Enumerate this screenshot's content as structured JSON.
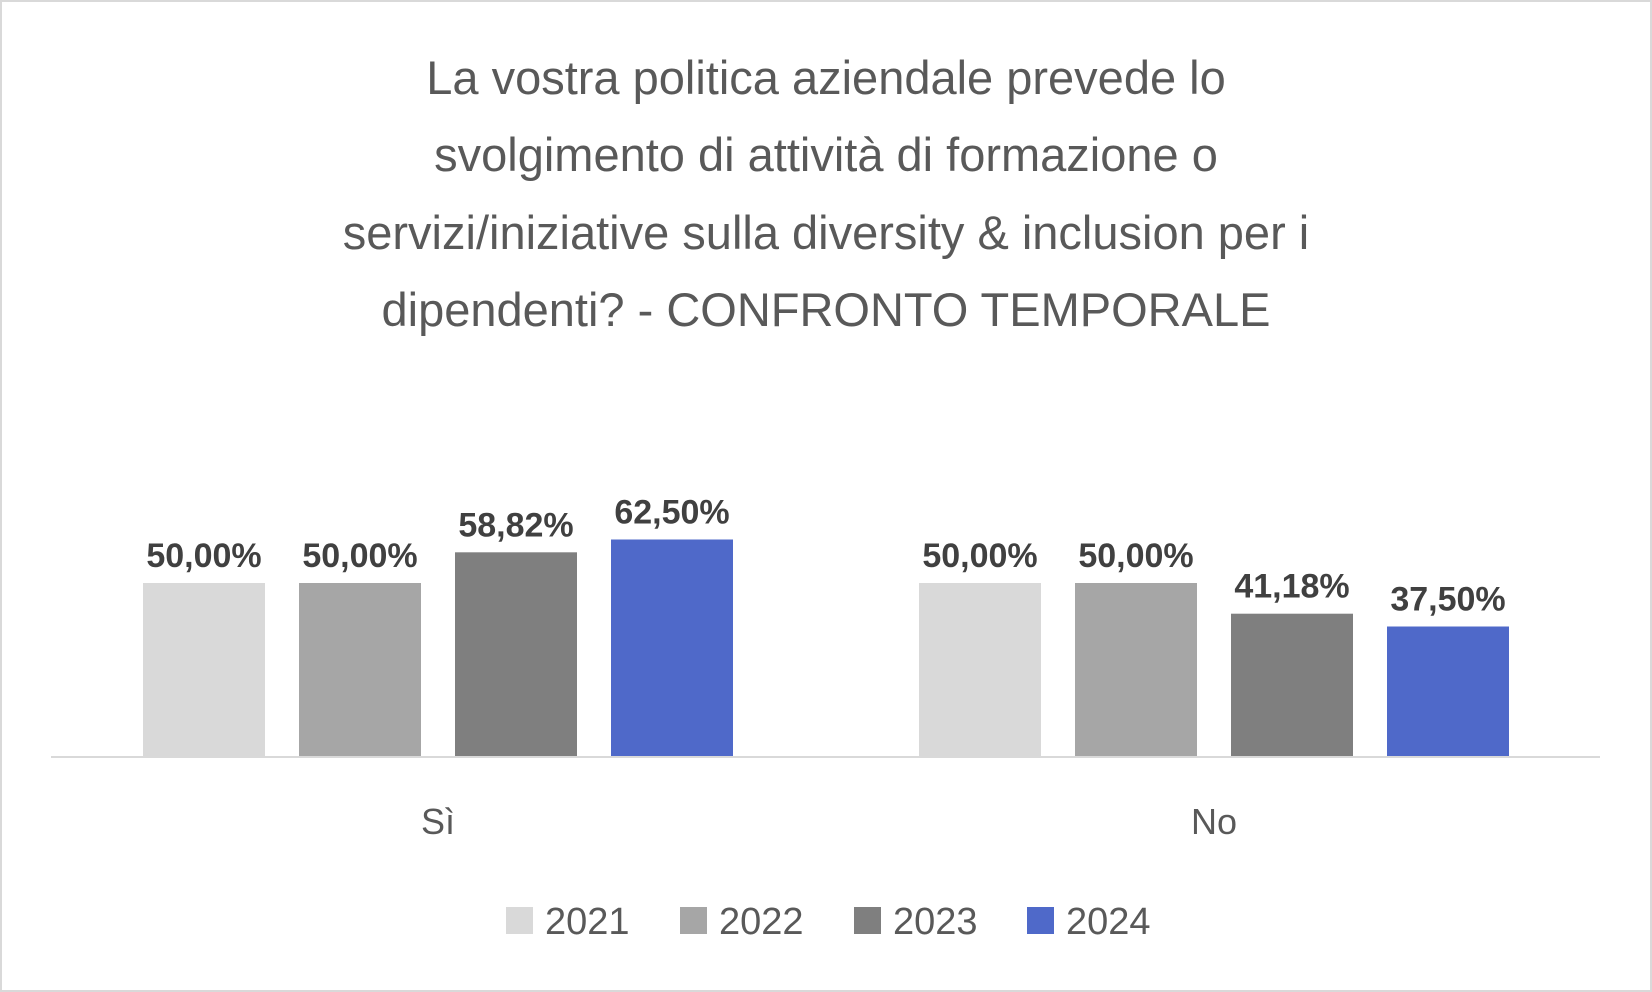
{
  "chart_data": {
    "type": "bar",
    "title_lines": [
      "La vostra politica aziendale prevede lo",
      "svolgimento di attività di formazione o",
      "servizi/iniziative sulla diversity & inclusion per i",
      "dipendenti? - CONFRONTO TEMPORALE"
    ],
    "categories": [
      "Sì",
      "No"
    ],
    "series": [
      {
        "name": "2021",
        "color": "#d9d9d9",
        "values": [
          50.0,
          50.0
        ],
        "labels": [
          "50,00%",
          "50,00%"
        ]
      },
      {
        "name": "2022",
        "color": "#a6a6a6",
        "values": [
          50.0,
          50.0
        ],
        "labels": [
          "50,00%",
          "50,00%"
        ]
      },
      {
        "name": "2023",
        "color": "#7f7f7f",
        "values": [
          58.82,
          41.18
        ],
        "labels": [
          "58,82%",
          "41,18%"
        ]
      },
      {
        "name": "2024",
        "color": "#4f69c9",
        "values": [
          62.5,
          37.5
        ],
        "labels": [
          "62,50%",
          "37,50%"
        ]
      }
    ],
    "xlabel": "",
    "ylabel": "",
    "ylim": [
      0,
      100
    ],
    "grid": false,
    "legend": "bottom"
  }
}
